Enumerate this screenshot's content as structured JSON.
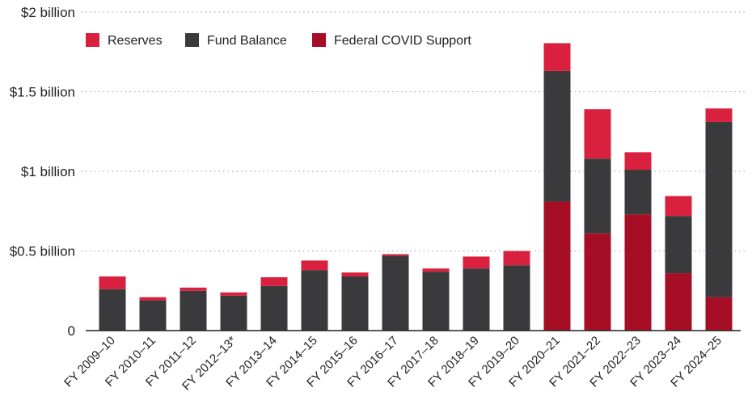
{
  "chart_data": {
    "type": "bar",
    "stacked": true,
    "title": "",
    "xlabel": "",
    "ylabel": "",
    "ylim": [
      0,
      2
    ],
    "y_ticks": [
      {
        "value": 0,
        "label": "0"
      },
      {
        "value": 0.5,
        "label": "$0.5 billion"
      },
      {
        "value": 1,
        "label": "$1 billion"
      },
      {
        "value": 1.5,
        "label": "$1.5 billion"
      },
      {
        "value": 2,
        "label": "$2 billion"
      }
    ],
    "grid": true,
    "legend_position": "top-left",
    "categories": [
      "FY 2009–10",
      "FY 2010–11",
      "FY 2011–12",
      "FY 2012–13*",
      "FY 2013–14",
      "FY 2014–15",
      "FY 2015–16",
      "FY 2016–17",
      "FY 2017–18",
      "FY 2018–19",
      "FY 2019–20",
      "FY 2020–21",
      "FY 2021–22",
      "FY 2022–23",
      "FY 2023–24",
      "FY 2024–25"
    ],
    "series": [
      {
        "name": "Federal COVID Support",
        "color": "#a50e24",
        "values": [
          0,
          0,
          0,
          0,
          0,
          0,
          0,
          0,
          0,
          0,
          0,
          0.81,
          0.61,
          0.73,
          0.36,
          0.21
        ]
      },
      {
        "name": "Fund Balance",
        "color": "#3a3a3c",
        "values": [
          0.26,
          0.19,
          0.25,
          0.22,
          0.28,
          0.38,
          0.34,
          0.47,
          0.37,
          0.39,
          0.41,
          0.82,
          0.47,
          0.28,
          0.36,
          1.1
        ]
      },
      {
        "name": "Reserves",
        "color": "#d9213f",
        "values": [
          0.08,
          0.02,
          0.02,
          0.02,
          0.055,
          0.06,
          0.025,
          0.01,
          0.02,
          0.075,
          0.09,
          0.175,
          0.31,
          0.11,
          0.125,
          0.085
        ]
      }
    ],
    "legend_order": [
      "Reserves",
      "Fund Balance",
      "Federal COVID Support"
    ]
  }
}
